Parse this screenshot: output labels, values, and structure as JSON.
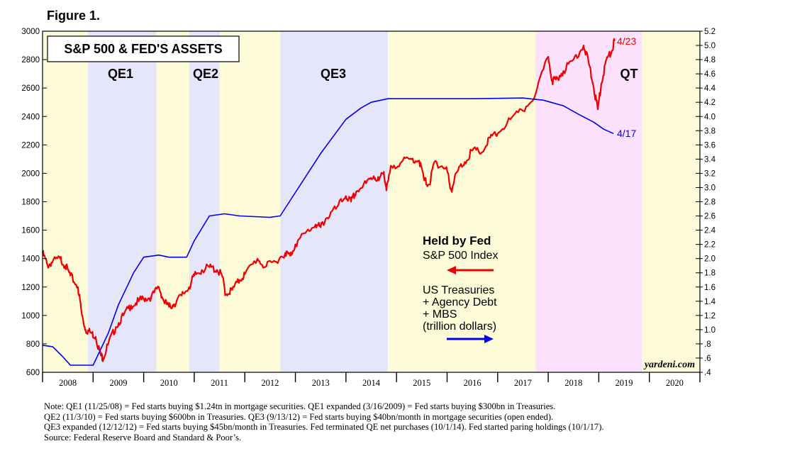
{
  "figure_label": "Figure 1.",
  "chart_data": {
    "type": "line",
    "title": "S&P 500 & FED'S ASSETS",
    "x_years": [
      "2008",
      "2009",
      "2010",
      "2011",
      "2012",
      "2013",
      "2014",
      "2015",
      "2016",
      "2017",
      "2018",
      "2019",
      "2020"
    ],
    "xlim": [
      2008.0,
      2021.0
    ],
    "left_axis": {
      "ylim": [
        600,
        3000
      ],
      "ticks": [
        "600",
        "800",
        "1000",
        "1200",
        "1400",
        "1600",
        "1800",
        "2000",
        "2200",
        "2400",
        "2600",
        "2800",
        "3000"
      ]
    },
    "right_axis": {
      "ylim": [
        0.4,
        5.2
      ],
      "ticks": [
        ".4",
        ".6",
        ".8",
        "1.0",
        "1.2",
        "1.4",
        "1.6",
        "1.8",
        "2.0",
        "2.2",
        "2.4",
        "2.6",
        "2.8",
        "3.0",
        "3.2",
        "3.4",
        "3.6",
        "3.8",
        "4.0",
        "4.2",
        "4.4",
        "4.6",
        "4.8",
        "5.0",
        "5.2"
      ]
    },
    "periods": [
      {
        "label": "",
        "start": 2008.0,
        "end": 2008.9,
        "color": "#fefbd8"
      },
      {
        "label": "QE1",
        "start": 2008.9,
        "end": 2010.25,
        "color": "#e6e6fb"
      },
      {
        "label": "",
        "start": 2010.25,
        "end": 2010.9,
        "color": "#fefbd8"
      },
      {
        "label": "QE2",
        "start": 2010.9,
        "end": 2011.5,
        "color": "#e6e6fb"
      },
      {
        "label": "",
        "start": 2011.5,
        "end": 2012.7,
        "color": "#fefbd8"
      },
      {
        "label": "QE3",
        "start": 2012.7,
        "end": 2014.83,
        "color": "#e6e6fb"
      },
      {
        "label": "",
        "start": 2014.83,
        "end": 2017.75,
        "color": "#fefbd8"
      },
      {
        "label": "QT",
        "start": 2017.75,
        "end": 2019.85,
        "color": "#fbe1fb"
      },
      {
        "label": "",
        "start": 2019.85,
        "end": 2021.0,
        "color": "#fefbd8"
      }
    ],
    "series": [
      {
        "name": "S&P 500 Index",
        "axis": "left",
        "color": "#ee0000",
        "end_label": "4/23",
        "x": [
          2008.0,
          2008.1,
          2008.2,
          2008.35,
          2008.45,
          2008.55,
          2008.7,
          2008.78,
          2008.85,
          2008.95,
          2009.05,
          2009.15,
          2009.2,
          2009.3,
          2009.45,
          2009.6,
          2009.75,
          2009.9,
          2010.0,
          2010.15,
          2010.3,
          2010.4,
          2010.5,
          2010.6,
          2010.75,
          2010.9,
          2011.0,
          2011.15,
          2011.3,
          2011.45,
          2011.55,
          2011.62,
          2011.75,
          2011.9,
          2012.0,
          2012.25,
          2012.4,
          2012.6,
          2012.8,
          2012.9,
          2013.0,
          2013.2,
          2013.4,
          2013.5,
          2013.6,
          2013.8,
          2014.0,
          2014.1,
          2014.2,
          2014.4,
          2014.55,
          2014.65,
          2014.75,
          2014.8,
          2014.9,
          2015.1,
          2015.3,
          2015.45,
          2015.55,
          2015.65,
          2015.75,
          2015.9,
          2016.0,
          2016.08,
          2016.2,
          2016.35,
          2016.5,
          2016.7,
          2016.85,
          2017.0,
          2017.25,
          2017.5,
          2017.75,
          2018.0,
          2018.08,
          2018.15,
          2018.3,
          2018.5,
          2018.7,
          2018.8,
          2018.9,
          2018.98,
          2019.05,
          2019.15,
          2019.25,
          2019.31
        ],
        "y": [
          1440,
          1350,
          1380,
          1400,
          1350,
          1280,
          1200,
          1000,
          900,
          880,
          850,
          720,
          700,
          800,
          920,
          1000,
          1070,
          1100,
          1120,
          1130,
          1200,
          1100,
          1060,
          1080,
          1140,
          1200,
          1280,
          1320,
          1340,
          1320,
          1280,
          1150,
          1180,
          1250,
          1290,
          1400,
          1340,
          1380,
          1440,
          1420,
          1500,
          1580,
          1640,
          1620,
          1680,
          1750,
          1840,
          1800,
          1870,
          1930,
          1980,
          1950,
          2010,
          1880,
          2050,
          2080,
          2100,
          2090,
          1950,
          1920,
          2080,
          2050,
          2020,
          1880,
          2010,
          2080,
          2160,
          2150,
          2250,
          2280,
          2380,
          2440,
          2560,
          2820,
          2650,
          2660,
          2720,
          2800,
          2900,
          2780,
          2600,
          2450,
          2630,
          2800,
          2850,
          2930
        ]
      },
      {
        "name": "US Treasuries + Agency Debt + MBS",
        "axis": "right",
        "color": "#0000ee",
        "end_label": "4/17",
        "x": [
          2008.0,
          2008.2,
          2008.4,
          2008.55,
          2008.9,
          2009.0,
          2009.3,
          2009.5,
          2009.8,
          2010.0,
          2010.3,
          2010.5,
          2010.85,
          2011.0,
          2011.3,
          2011.6,
          2011.9,
          2012.5,
          2012.7,
          2013.0,
          2013.5,
          2014.0,
          2014.3,
          2014.5,
          2014.83,
          2015.5,
          2016.5,
          2017.5,
          2017.9,
          2018.3,
          2018.6,
          2018.9,
          2019.1,
          2019.29
        ],
        "y": [
          0.78,
          0.76,
          0.62,
          0.5,
          0.5,
          0.5,
          0.95,
          1.35,
          1.8,
          2.02,
          2.05,
          2.02,
          2.02,
          2.25,
          2.6,
          2.63,
          2.6,
          2.58,
          2.6,
          2.93,
          3.48,
          3.96,
          4.12,
          4.2,
          4.25,
          4.25,
          4.25,
          4.26,
          4.23,
          4.15,
          4.03,
          3.92,
          3.82,
          3.76
        ]
      }
    ],
    "annotations": {
      "last_date_sp": "4/23",
      "last_date_fed": "4/17",
      "source_mark": "yardeni.com"
    }
  },
  "legend": {
    "held_by_fed": "Held by Fed",
    "sp500": "S&P 500 Index",
    "fed_lines": [
      "US Treasuries",
      "+ Agency Debt",
      "+ MBS",
      "(trillion dollars)"
    ]
  },
  "notes": [
    "Note: QE1 (11/25/08) = Fed starts buying $1.24tn in mortgage securities. QE1 expanded (3/16/2009) = Fed starts buying $300bn in Treasuries.",
    "QE2 (11/3/10) = Fed starts buying $600bn in Treasuries. QE3 (9/13/12) = Fed starts buying $40bn/month in mortgage securities (open ended).",
    "QE3 expanded (12/12/12) = Fed starts buying $45bn/month in Treasuries. Fed terminated QE net purchases (10/1/14). Fed started paring holdings (10/1/17).",
    "Source: Federal Reserve Board and Standard & Poor’s."
  ],
  "colors": {
    "sp500": "#ee0000",
    "fed": "#0000ee",
    "qe_shade": "#e6e6fb",
    "qt_shade": "#fbe1fb",
    "neutral_shade": "#fefbd8"
  }
}
